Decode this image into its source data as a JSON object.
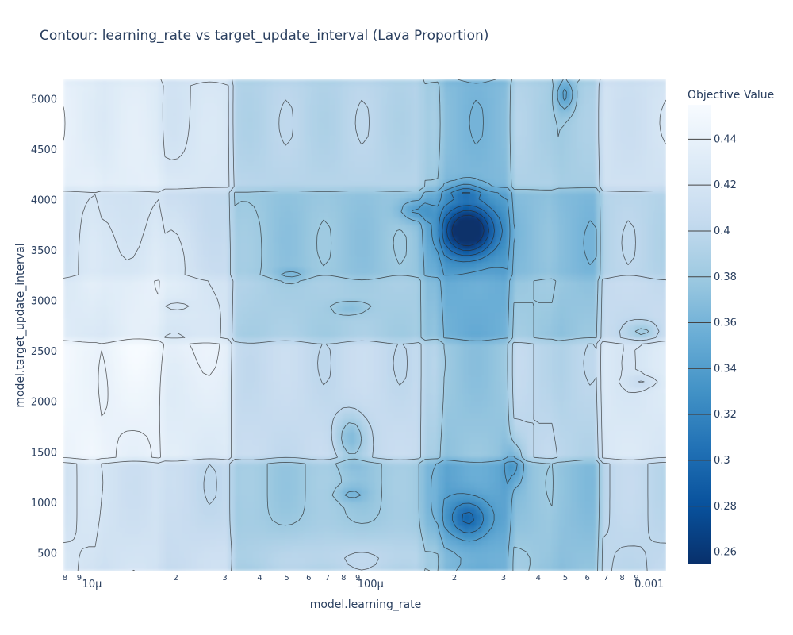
{
  "chart_data": {
    "type": "contour",
    "title": "Contour: learning_rate vs target_update_interval (Lava Proportion)",
    "xlabel": "model.learning_rate",
    "ylabel": "model.target_update_interval",
    "x_scale": "log",
    "xlim": [
      7.9e-06,
      0.00115
    ],
    "ylim": [
      330,
      5200
    ],
    "x_major_ticks": [
      {
        "value": 1e-05,
        "label": "10μ"
      },
      {
        "value": 0.0001,
        "label": "100μ"
      },
      {
        "value": 0.001,
        "label": "0.001"
      }
    ],
    "x_minor_ticks": [
      {
        "value": 8e-06,
        "label": "8"
      },
      {
        "value": 9e-06,
        "label": "9"
      },
      {
        "value": 2e-05,
        "label": "2"
      },
      {
        "value": 3e-05,
        "label": "3"
      },
      {
        "value": 4e-05,
        "label": "4"
      },
      {
        "value": 5e-05,
        "label": "5"
      },
      {
        "value": 6e-05,
        "label": "6"
      },
      {
        "value": 7e-05,
        "label": "7"
      },
      {
        "value": 8e-05,
        "label": "8"
      },
      {
        "value": 9e-05,
        "label": "9"
      },
      {
        "value": 0.0002,
        "label": "2"
      },
      {
        "value": 0.0003,
        "label": "3"
      },
      {
        "value": 0.0004,
        "label": "4"
      },
      {
        "value": 0.0005,
        "label": "5"
      },
      {
        "value": 0.0006,
        "label": "6"
      },
      {
        "value": 0.0007,
        "label": "7"
      },
      {
        "value": 0.0008,
        "label": "8"
      },
      {
        "value": 0.0009,
        "label": "9"
      }
    ],
    "y_ticks": [
      {
        "value": 500,
        "label": "500"
      },
      {
        "value": 1000,
        "label": "1000"
      },
      {
        "value": 1500,
        "label": "1500"
      },
      {
        "value": 2000,
        "label": "2000"
      },
      {
        "value": 2500,
        "label": "2500"
      },
      {
        "value": 3000,
        "label": "3000"
      },
      {
        "value": 3500,
        "label": "3500"
      },
      {
        "value": 4000,
        "label": "4000"
      },
      {
        "value": 4500,
        "label": "4500"
      },
      {
        "value": 5000,
        "label": "5000"
      }
    ],
    "colorbar": {
      "title": "Objective Value",
      "range": [
        0.255,
        0.455
      ],
      "ticks": [
        {
          "value": 0.44,
          "label": "0.44"
        },
        {
          "value": 0.42,
          "label": "0.42"
        },
        {
          "value": 0.4,
          "label": "0.4"
        },
        {
          "value": 0.38,
          "label": "0.38"
        },
        {
          "value": 0.36,
          "label": "0.36"
        },
        {
          "value": 0.34,
          "label": "0.34"
        },
        {
          "value": 0.32,
          "label": "0.32"
        },
        {
          "value": 0.3,
          "label": "0.3"
        },
        {
          "value": 0.28,
          "label": "0.28"
        },
        {
          "value": 0.26,
          "label": "0.26"
        }
      ],
      "colors": [
        "#08306b",
        "#08519c",
        "#2171b5",
        "#4292c6",
        "#6baed6",
        "#9ecae1",
        "#c6dbef",
        "#deebf7",
        "#f7fbff"
      ]
    },
    "x_regions": [
      {
        "range": [
          7.9e-06,
          1.05e-05
        ],
        "value": 0.43
      },
      {
        "range": [
          1.05e-05,
          1.8e-05
        ],
        "value": 0.425
      },
      {
        "range": [
          1.8e-05,
          3.2e-05
        ],
        "value": 0.415
      },
      {
        "range": [
          3.2e-05,
          0.000155
        ],
        "value": 0.39
      },
      {
        "range": [
          0.000155,
          0.00018
        ],
        "value": 0.375
      },
      {
        "range": [
          0.00018,
          0.00032
        ],
        "value": 0.36
      },
      {
        "range": [
          0.00032,
          0.00047
        ],
        "value": 0.385
      },
      {
        "range": [
          0.00047,
          0.00065
        ],
        "value": 0.38
      },
      {
        "range": [
          0.00065,
          0.00115
        ],
        "value": 0.41
      }
    ],
    "y_regions": [
      {
        "range": [
          330,
          1450
        ],
        "value": -0.01
      },
      {
        "range": [
          1450,
          2600
        ],
        "value": 0.015
      },
      {
        "range": [
          2600,
          3250
        ],
        "value": -0.005
      },
      {
        "range": [
          3250,
          4100
        ],
        "value": -0.015
      },
      {
        "range": [
          4100,
          5200
        ],
        "value": 0.005
      }
    ],
    "contour_levels": [
      0.26,
      0.28,
      0.3,
      0.32,
      0.34,
      0.36,
      0.38,
      0.4,
      0.42,
      0.44
    ],
    "hotspots": [
      {
        "x": 0.000225,
        "y": 3700,
        "rx": 0.09,
        "ry": 250,
        "depth": 0.13
      },
      {
        "x": 0.000225,
        "y": 850,
        "rx": 0.07,
        "ry": 200,
        "depth": 0.06
      },
      {
        "x": 0.000145,
        "y": 3900,
        "rx": 0.06,
        "ry": 100,
        "depth": 0.04
      },
      {
        "x": 0.00022,
        "y": 4100,
        "rx": 0.06,
        "ry": 70,
        "depth": 0.04
      },
      {
        "x": 8.5e-05,
        "y": 1650,
        "rx": 0.05,
        "ry": 220,
        "depth": 0.04
      },
      {
        "x": 0.00033,
        "y": 1400,
        "rx": 0.025,
        "ry": 220,
        "depth": 0.04
      },
      {
        "x": 0.0005,
        "y": 5050,
        "rx": 0.03,
        "ry": 160,
        "depth": 0.05
      },
      {
        "x": 0.00095,
        "y": 2700,
        "rx": 0.05,
        "ry": 80,
        "depth": 0.03
      },
      {
        "x": 0.00095,
        "y": 2200,
        "rx": 0.05,
        "ry": 50,
        "depth": 0.025
      },
      {
        "x": 8.5e-05,
        "y": 2930,
        "rx": 0.06,
        "ry": 40,
        "depth": 0.03
      },
      {
        "x": 5.2e-05,
        "y": 3250,
        "rx": 0.05,
        "ry": 40,
        "depth": 0.025
      },
      {
        "x": 2e-05,
        "y": 2960,
        "rx": 0.05,
        "ry": 40,
        "depth": 0.015
      },
      {
        "x": 8.5e-05,
        "y": 1090,
        "rx": 0.05,
        "ry": 60,
        "depth": 0.025
      },
      {
        "x": 9e-05,
        "y": 450,
        "rx": 0.5,
        "ry": 250,
        "depth": -0.02
      },
      {
        "x": 1.8e-05,
        "y": 3200,
        "rx": 0.25,
        "ry": 900,
        "depth": -0.02
      }
    ]
  }
}
